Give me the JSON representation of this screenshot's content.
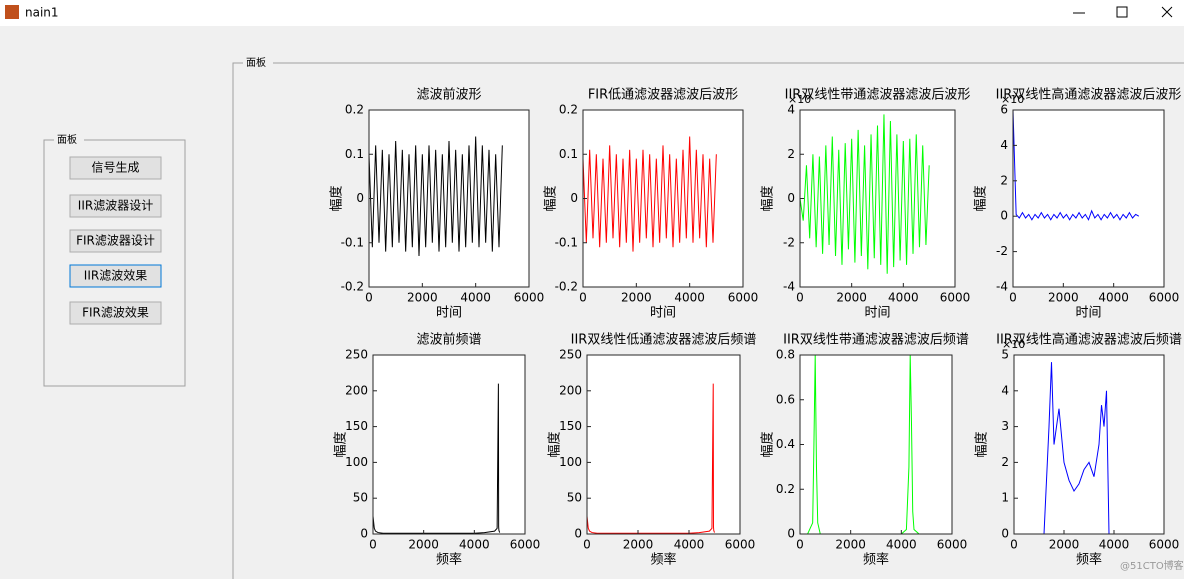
{
  "window": {
    "title": "nain1"
  },
  "left_panel": {
    "title": "面板",
    "buttons": [
      "信号生成",
      "IIR滤波器设计",
      "FIR滤波器设计",
      "IIR滤波效果",
      "FIR滤波效果"
    ]
  },
  "right_panel": {
    "title": "面板"
  },
  "watermark": "@51CTO博客",
  "chart_data": [
    {
      "type": "line",
      "title": "滤波前波形",
      "xlabel": "时间",
      "ylabel": "幅度",
      "color": "#000000",
      "x": [
        0,
        125,
        250,
        375,
        500,
        625,
        750,
        875,
        1000,
        1125,
        1250,
        1375,
        1500,
        1625,
        1750,
        1875,
        2000,
        2125,
        2250,
        2375,
        2500,
        2625,
        2750,
        2875,
        3000,
        3125,
        3250,
        3375,
        3500,
        3625,
        3750,
        3875,
        4000,
        4125,
        4250,
        4375,
        4500,
        4625,
        4750,
        4875,
        5000
      ],
      "values": [
        0.1,
        -0.11,
        0.12,
        -0.1,
        0.11,
        -0.12,
        0.1,
        -0.11,
        0.13,
        -0.1,
        0.11,
        -0.12,
        0.1,
        -0.11,
        0.12,
        -0.13,
        0.1,
        -0.11,
        0.12,
        -0.1,
        0.11,
        -0.12,
        0.1,
        -0.11,
        0.13,
        -0.1,
        0.11,
        -0.12,
        0.1,
        -0.11,
        0.12,
        -0.1,
        0.14,
        -0.11,
        0.12,
        -0.1,
        0.11,
        -0.12,
        0.1,
        -0.11,
        0.12
      ],
      "xlim": [
        0,
        6000
      ],
      "xticks": [
        0,
        2000,
        4000,
        6000
      ],
      "ylim": [
        -0.2,
        0.2
      ],
      "yticks": [
        -0.2,
        -0.1,
        0,
        0.1,
        0.2
      ]
    },
    {
      "type": "line",
      "title": "FIR低通滤波器滤波后波形",
      "xlabel": "时间",
      "ylabel": "幅度",
      "color": "#ff0000",
      "x": [
        0,
        125,
        250,
        375,
        500,
        625,
        750,
        875,
        1000,
        1125,
        1250,
        1375,
        1500,
        1625,
        1750,
        1875,
        2000,
        2125,
        2250,
        2375,
        2500,
        2625,
        2750,
        2875,
        3000,
        3125,
        3250,
        3375,
        3500,
        3625,
        3750,
        3875,
        4000,
        4125,
        4250,
        4375,
        4500,
        4625,
        4750,
        4875,
        5000
      ],
      "values": [
        0.09,
        -0.1,
        0.11,
        -0.09,
        0.1,
        -0.11,
        0.09,
        -0.1,
        0.12,
        -0.09,
        0.1,
        -0.11,
        0.09,
        -0.1,
        0.11,
        -0.12,
        0.09,
        -0.1,
        0.11,
        -0.09,
        0.1,
        -0.11,
        0.09,
        -0.1,
        0.12,
        -0.09,
        0.1,
        -0.11,
        0.09,
        -0.1,
        0.11,
        -0.09,
        0.14,
        -0.1,
        0.11,
        -0.09,
        0.1,
        -0.11,
        0.09,
        -0.1,
        0.1
      ],
      "xlim": [
        0,
        6000
      ],
      "xticks": [
        0,
        2000,
        4000,
        6000
      ],
      "ylim": [
        -0.2,
        0.2
      ],
      "yticks": [
        -0.2,
        -0.1,
        0,
        0.1,
        0.2
      ]
    },
    {
      "type": "line",
      "title": "IIR双线性带通滤波器滤波后波形",
      "xlabel": "时间",
      "ylabel": "幅度",
      "color": "#00ff00",
      "y_exponent": "×10",
      "x": [
        0,
        125,
        250,
        375,
        500,
        625,
        750,
        875,
        1000,
        1125,
        1250,
        1375,
        1500,
        1625,
        1750,
        1875,
        2000,
        2125,
        2250,
        2375,
        2500,
        2625,
        2750,
        2875,
        3000,
        3125,
        3250,
        3375,
        3500,
        3625,
        3750,
        3875,
        4000,
        4125,
        4250,
        4375,
        4500,
        4625,
        4750,
        4875,
        5000
      ],
      "values": [
        0,
        -1,
        1.5,
        -1.8,
        2,
        -2.2,
        1.9,
        -2.5,
        2.4,
        -2.1,
        2.8,
        -2.6,
        2.2,
        -3,
        2.5,
        -2.3,
        2.7,
        -2.9,
        3.1,
        -2.6,
        2.4,
        -3.2,
        2.9,
        -2.7,
        3.3,
        -3,
        3.8,
        -3.4,
        3.5,
        -3.1,
        2.9,
        -2.8,
        2.6,
        -3,
        2.7,
        -2.5,
        2.9,
        -2.2,
        2.4,
        -2.1,
        1.5
      ],
      "xlim": [
        0,
        6000
      ],
      "xticks": [
        0,
        2000,
        4000,
        6000
      ],
      "ylim": [
        -4,
        4
      ],
      "yticks": [
        -4,
        -2,
        0,
        2,
        4
      ]
    },
    {
      "type": "line",
      "title": "IIR双线性高通滤波器滤波后波形",
      "xlabel": "时间",
      "ylabel": "幅度",
      "color": "#0000ff",
      "y_exponent": "×10",
      "x": [
        0,
        125,
        250,
        375,
        500,
        625,
        750,
        875,
        1000,
        1125,
        1250,
        1375,
        1500,
        1625,
        1750,
        1875,
        2000,
        2125,
        2250,
        2375,
        2500,
        2625,
        2750,
        2875,
        3000,
        3125,
        3250,
        3375,
        3500,
        3625,
        3750,
        3875,
        4000,
        4125,
        4250,
        4375,
        4500,
        4625,
        4750,
        4875,
        5000
      ],
      "values": [
        6,
        0.1,
        -0.1,
        0.2,
        -0.1,
        0.1,
        -0.2,
        0.1,
        -0.1,
        0.2,
        -0.1,
        0.1,
        -0.2,
        0.1,
        -0.1,
        0.2,
        -0.1,
        0.1,
        -0.2,
        0.1,
        -0.1,
        0.2,
        -0.1,
        0.1,
        -0.2,
        0.3,
        -0.1,
        0.1,
        -0.2,
        0.1,
        -0.1,
        0.2,
        -0.1,
        0.1,
        -0.2,
        0.1,
        -0.1,
        0.2,
        -0.1,
        0.1,
        0
      ],
      "xlim": [
        0,
        6000
      ],
      "xticks": [
        0,
        2000,
        4000,
        6000
      ],
      "ylim": [
        -4,
        6
      ],
      "yticks": [
        -4,
        -2,
        0,
        2,
        4,
        6
      ]
    },
    {
      "type": "line",
      "title": "滤波前频谱",
      "xlabel": "频率",
      "ylabel": "幅度",
      "color": "#000000",
      "x": [
        0,
        50,
        100,
        200,
        400,
        800,
        1200,
        1600,
        2000,
        2400,
        2800,
        3200,
        3600,
        4000,
        4400,
        4800,
        4900,
        4950,
        4960,
        4970,
        5000
      ],
      "values": [
        25,
        8,
        4,
        2,
        1,
        1,
        1,
        1,
        1,
        1,
        1,
        1,
        1,
        1,
        2,
        4,
        8,
        210,
        10,
        5,
        2
      ],
      "xlim": [
        0,
        6000
      ],
      "xticks": [
        0,
        2000,
        4000,
        6000
      ],
      "ylim": [
        0,
        250
      ],
      "yticks": [
        0,
        50,
        100,
        150,
        200,
        250
      ]
    },
    {
      "type": "line",
      "title": "IIR双线性低通滤波器滤波后频谱",
      "xlabel": "频率",
      "ylabel": "幅度",
      "color": "#ff0000",
      "x": [
        0,
        50,
        100,
        200,
        400,
        800,
        1200,
        1600,
        2000,
        2400,
        2800,
        3200,
        3600,
        4000,
        4400,
        4800,
        4900,
        4950,
        4960,
        4970,
        5000
      ],
      "values": [
        25,
        8,
        4,
        2,
        1,
        1,
        1,
        1,
        1,
        1,
        1,
        1,
        1,
        1,
        2,
        4,
        8,
        210,
        10,
        5,
        2
      ],
      "xlim": [
        0,
        6000
      ],
      "xticks": [
        0,
        2000,
        4000,
        6000
      ],
      "ylim": [
        0,
        250
      ],
      "yticks": [
        0,
        50,
        100,
        150,
        200,
        250
      ]
    },
    {
      "type": "line",
      "title": "IIR双线性带通滤波器滤波后频谱",
      "xlabel": "频率",
      "ylabel": "幅度",
      "color": "#00ff00",
      "x": [
        0,
        300,
        500,
        550,
        600,
        650,
        700,
        800,
        1000,
        2000,
        3000,
        4000,
        4200,
        4300,
        4350,
        4400,
        4450,
        4500,
        4700,
        5000
      ],
      "values": [
        0,
        0,
        0.05,
        0.4,
        0.8,
        0.3,
        0.05,
        0,
        0,
        0,
        0,
        0,
        0.02,
        0.3,
        0.8,
        0.5,
        0.1,
        0.02,
        0,
        0
      ],
      "xlim": [
        0,
        6000
      ],
      "xticks": [
        0,
        2000,
        4000,
        6000
      ],
      "ylim": [
        0,
        0.8
      ],
      "yticks": [
        0,
        0.2,
        0.4,
        0.6,
        0.8
      ]
    },
    {
      "type": "line",
      "title": "IIR双线性高通滤波器滤波后频谱",
      "xlabel": "频率",
      "ylabel": "幅度",
      "color": "#0000ff",
      "y_exponent": "×10",
      "x": [
        0,
        1200,
        1300,
        1400,
        1500,
        1600,
        1800,
        2000,
        2200,
        2400,
        2600,
        2800,
        3000,
        3200,
        3400,
        3500,
        3600,
        3700,
        3800,
        5000
      ],
      "values": [
        0,
        0,
        1.5,
        3,
        4.8,
        2.5,
        3.5,
        2,
        1.5,
        1.2,
        1.4,
        1.8,
        2,
        1.6,
        2.5,
        3.6,
        3,
        4,
        0,
        0
      ],
      "xlim": [
        0,
        6000
      ],
      "xticks": [
        0,
        2000,
        4000,
        6000
      ],
      "ylim": [
        0,
        5
      ],
      "yticks": [
        0,
        1,
        2,
        3,
        4,
        5
      ]
    }
  ]
}
